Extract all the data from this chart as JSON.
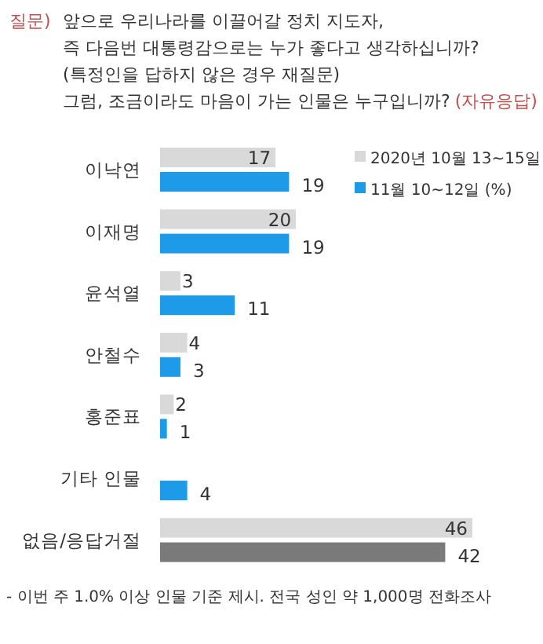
{
  "chart_data": {
    "type": "bar",
    "orientation": "horizontal",
    "title": "앞으로 우리나라를 이끌어갈 정치 지도자,\n즉 다음번 대통령감으로는 누가 좋다고 생각하십니까?\n(특정인을 답하지 않은 경우 재질문)\n그럼, 조금이라도 마음이 가는 인물은 누구입니까?",
    "annotations": [
      "질문)",
      "(자유응답)",
      "- 이번 주 1.0% 이상 인물 기준 제시. 전국 성인 약 1,000명 전화조사"
    ],
    "categories": [
      "이낙연",
      "이재명",
      "윤석열",
      "안철수",
      "홍준표",
      "기타 인물",
      "없음/응답거절"
    ],
    "series": [
      {
        "name": "2020년 10월 13~15일",
        "color": "#d9d9d9",
        "colors": [
          "#d9d9d9",
          "#d9d9d9",
          "#d9d9d9",
          "#d9d9d9",
          "#d9d9d9",
          null,
          "#d9d9d9"
        ],
        "values": [
          17,
          20,
          3,
          4,
          2,
          null,
          46
        ]
      },
      {
        "name": "11월 10~12일 (%)",
        "color": "#1e9be8",
        "colors": [
          "#1e9be8",
          "#1e9be8",
          "#1e9be8",
          "#1e9be8",
          "#1e9be8",
          "#1e9be8",
          "#7a7a7a"
        ],
        "values": [
          19,
          19,
          11,
          3,
          1,
          4,
          42
        ]
      }
    ],
    "data_labels": true,
    "legend": "top right"
  }
}
